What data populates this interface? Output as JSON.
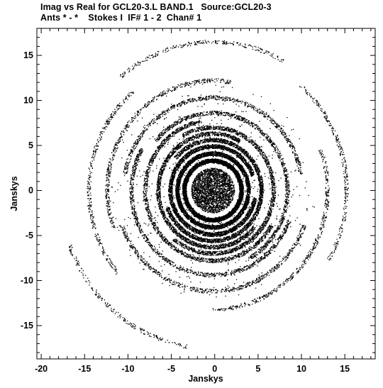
{
  "chart_data": {
    "type": "scatter",
    "title_line1": "Imag vs Real for GCL20-3.L BAND.1   Source:GCL20-3",
    "title_line2": "Ants * - *    Stokes I  IF# 1 - 2  Chan# 1",
    "xlabel": "Janskys",
    "ylabel": "Janskys",
    "xlim": [
      -20.5,
      18.5
    ],
    "ylim": [
      -18.7,
      18.0
    ],
    "xticks": [
      -20,
      -15,
      -10,
      -5,
      0,
      5,
      10,
      15
    ],
    "yticks": [
      -15,
      -10,
      -5,
      0,
      5,
      10,
      15
    ],
    "xtick_labels": [
      "-20",
      "-15",
      "-10",
      "-5",
      "0",
      "5",
      "10",
      "15"
    ],
    "ytick_labels": [
      "-15",
      "-10",
      "-5",
      "0",
      "5",
      "10",
      "15"
    ],
    "marker_color": "#000000",
    "series": [
      {
        "description": "dense cloud of visibility points centered near origin, concentrated in concentric circular arcs",
        "center": [
          -0.2,
          0.0
        ],
        "dense_core_radius": 2.5,
        "arcs": [
          {
            "radius": 3.3,
            "start_deg": 0,
            "span_deg": 360
          },
          {
            "radius": 4.1,
            "start_deg": 0,
            "span_deg": 360
          },
          {
            "radius": 4.9,
            "start_deg": 20,
            "span_deg": 330
          },
          {
            "radius": 5.6,
            "start_deg": 200,
            "span_deg": 300
          },
          {
            "radius": 6.3,
            "start_deg": 60,
            "span_deg": 260
          },
          {
            "radius": 7.0,
            "start_deg": 230,
            "span_deg": 250
          },
          {
            "radius": 7.8,
            "start_deg": 100,
            "span_deg": 230
          },
          {
            "radius": 8.6,
            "start_deg": 300,
            "span_deg": 200
          },
          {
            "radius": 9.4,
            "start_deg": 150,
            "span_deg": 190
          },
          {
            "radius": 10.3,
            "start_deg": 10,
            "span_deg": 160
          },
          {
            "radius": 11.2,
            "start_deg": 200,
            "span_deg": 140
          },
          {
            "radius": 12.2,
            "start_deg": 80,
            "span_deg": 120
          },
          {
            "radius": 13.2,
            "start_deg": 270,
            "span_deg": 110
          },
          {
            "radius": 14.3,
            "start_deg": 130,
            "span_deg": 90
          },
          {
            "radius": 15.4,
            "start_deg": 330,
            "span_deg": 80
          },
          {
            "radius": 16.5,
            "start_deg": 60,
            "span_deg": 70
          },
          {
            "radius": 17.6,
            "start_deg": 200,
            "span_deg": 60
          }
        ]
      }
    ]
  }
}
